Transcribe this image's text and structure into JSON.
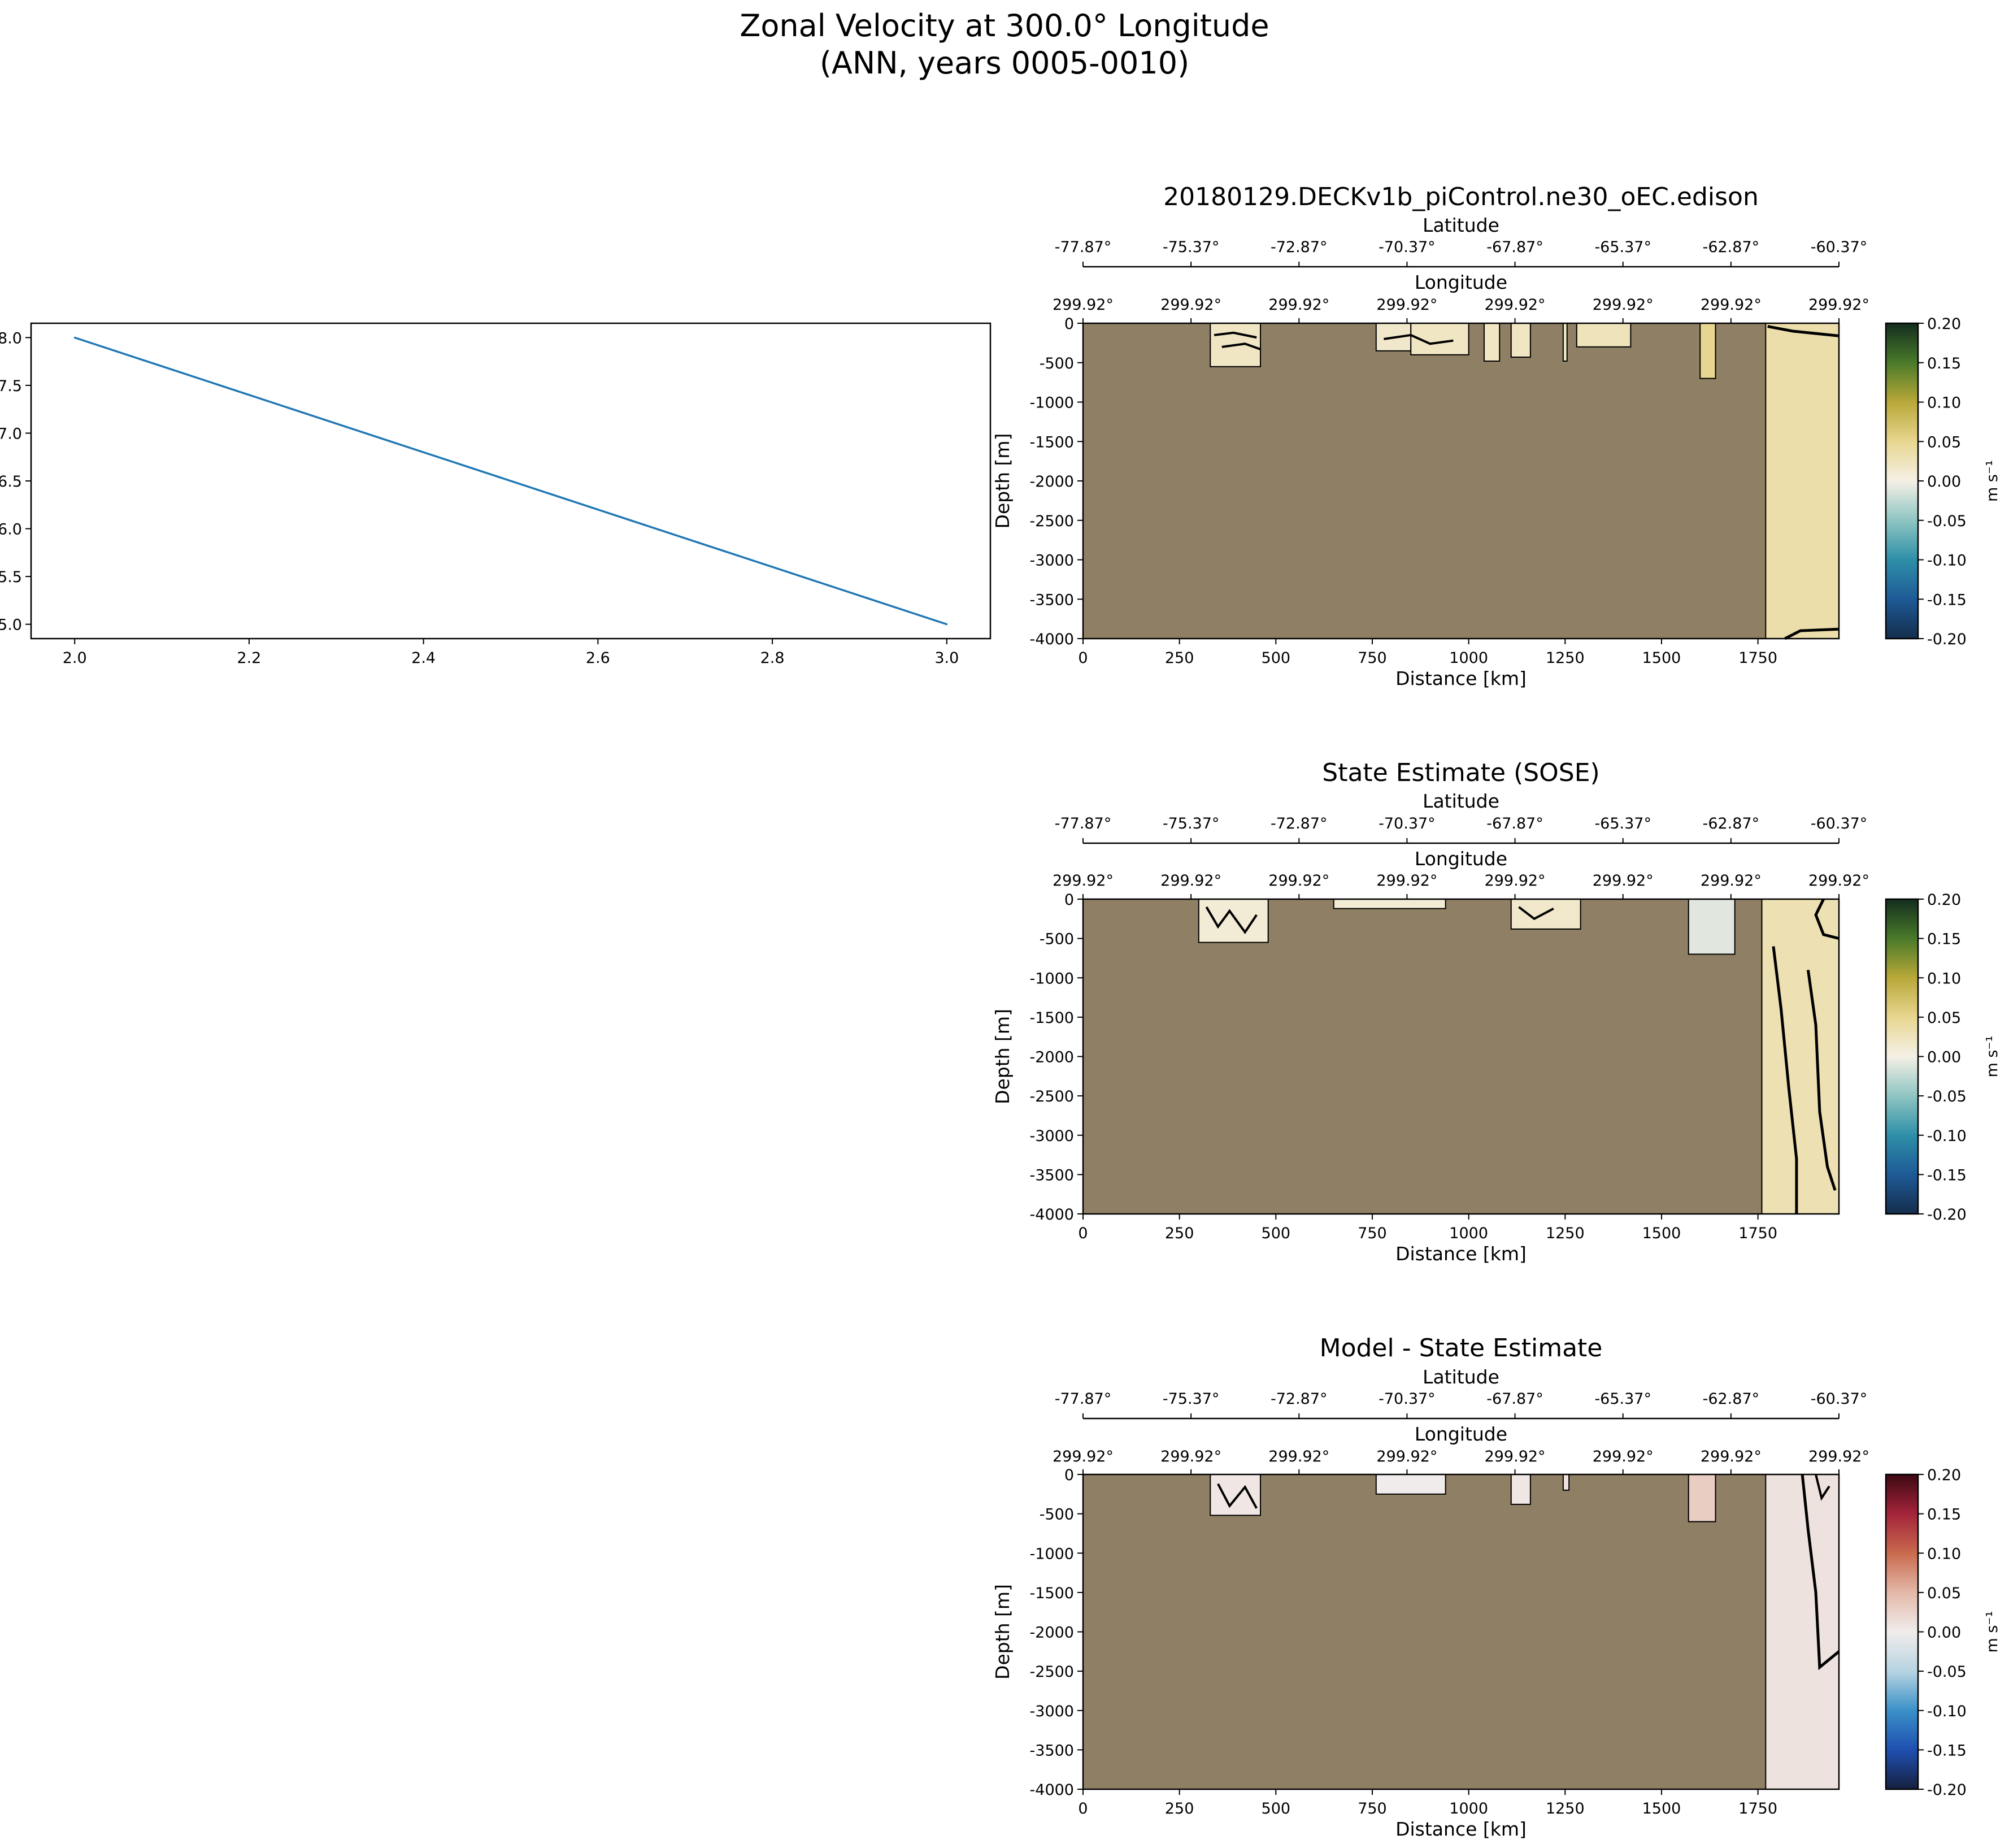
{
  "figure": {
    "suptitle_line1": "Zonal Velocity at 300.0° Longitude",
    "suptitle_line2": "(ANN, years 0005-0010)"
  },
  "colors": {
    "land": "#8f8065",
    "line": "#1f77b4",
    "contour": "#000000"
  },
  "chart_data": [
    {
      "type": "line",
      "x": [
        2.0,
        3.0
      ],
      "y": [
        8.0,
        5.0
      ],
      "xlim": [
        1.95,
        3.05
      ],
      "ylim": [
        4.85,
        8.15
      ],
      "xticks": [
        "2.0",
        "2.2",
        "2.4",
        "2.6",
        "2.8",
        "3.0"
      ],
      "yticks": [
        "5.0",
        "5.5",
        "6.0",
        "6.5",
        "7.0",
        "7.5",
        "8.0"
      ],
      "grid": false
    },
    {
      "type": "heatmap",
      "title": "20180129.DECKv1b_piControl.ne30_oEC.edison",
      "xlabel": "Distance [km]",
      "ylabel": "Depth [m]",
      "xlim": [
        0,
        1960
      ],
      "ylim": [
        -4000,
        0
      ],
      "xticks": [
        "0",
        "250",
        "500",
        "750",
        "1000",
        "1250",
        "1500",
        "1750"
      ],
      "yticks": [
        "0",
        "-500",
        "-1000",
        "-1500",
        "-2000",
        "-2500",
        "-3000",
        "-3500",
        "-4000"
      ],
      "lat_label": "Latitude",
      "lat_ticks": [
        "-77.87°",
        "-75.37°",
        "-72.87°",
        "-70.37°",
        "-67.87°",
        "-65.37°",
        "-62.87°",
        "-60.37°"
      ],
      "lon_label": "Longitude",
      "lon_ticks": [
        "299.92°",
        "299.92°",
        "299.92°",
        "299.92°",
        "299.92°",
        "299.92°",
        "299.92°",
        "299.92°"
      ],
      "colorbar": {
        "label": "m s⁻¹",
        "ticks": [
          "0.20",
          "0.15",
          "0.10",
          "0.05",
          "0.00",
          "-0.05",
          "-0.10",
          "-0.15",
          "-0.20"
        ],
        "vmin": -0.2,
        "vmax": 0.2,
        "colormap": "delta",
        "stops": [
          "#142d4c",
          "#1e5a96",
          "#2e8fa8",
          "#8fc5c2",
          "#f5f0e6",
          "#e8d690",
          "#b8a838",
          "#4a7a2a",
          "#132d1e"
        ]
      },
      "ocean_regions": [
        {
          "x0": 330,
          "x1": 460,
          "depth": 550,
          "value": 0.02
        },
        {
          "x0": 760,
          "x1": 850,
          "depth": 350,
          "value": 0.015
        },
        {
          "x0": 850,
          "x1": 1000,
          "depth": 400,
          "value": 0.02
        },
        {
          "x0": 1040,
          "x1": 1080,
          "depth": 480,
          "value": 0.02
        },
        {
          "x0": 1110,
          "x1": 1160,
          "depth": 430,
          "value": 0.02
        },
        {
          "x0": 1245,
          "x1": 1255,
          "depth": 480,
          "value": 0.02
        },
        {
          "x0": 1280,
          "x1": 1420,
          "depth": 300,
          "value": 0.025
        },
        {
          "x0": 1600,
          "x1": 1640,
          "depth": 700,
          "value": 0.05
        },
        {
          "x0": 1770,
          "x1": 1960,
          "depth": 4000,
          "value": 0.035
        }
      ]
    },
    {
      "type": "heatmap",
      "title": "State Estimate (SOSE)",
      "xlabel": "Distance [km]",
      "ylabel": "Depth [m]",
      "xlim": [
        0,
        1960
      ],
      "ylim": [
        -4000,
        0
      ],
      "xticks": [
        "0",
        "250",
        "500",
        "750",
        "1000",
        "1250",
        "1500",
        "1750"
      ],
      "yticks": [
        "0",
        "-500",
        "-1000",
        "-1500",
        "-2000",
        "-2500",
        "-3000",
        "-3500",
        "-4000"
      ],
      "lat_label": "Latitude",
      "lat_ticks": [
        "-77.87°",
        "-75.37°",
        "-72.87°",
        "-70.37°",
        "-67.87°",
        "-65.37°",
        "-62.87°",
        "-60.37°"
      ],
      "lon_label": "Longitude",
      "lon_ticks": [
        "299.92°",
        "299.92°",
        "299.92°",
        "299.92°",
        "299.92°",
        "299.92°",
        "299.92°",
        "299.92°"
      ],
      "colorbar": {
        "label": "m s⁻¹",
        "ticks": [
          "0.20",
          "0.15",
          "0.10",
          "0.05",
          "0.00",
          "-0.05",
          "-0.10",
          "-0.15",
          "-0.20"
        ],
        "vmin": -0.2,
        "vmax": 0.2,
        "colormap": "delta",
        "stops": [
          "#142d4c",
          "#1e5a96",
          "#2e8fa8",
          "#8fc5c2",
          "#f5f0e6",
          "#e8d690",
          "#b8a838",
          "#4a7a2a",
          "#132d1e"
        ]
      },
      "ocean_regions": [
        {
          "x0": 300,
          "x1": 480,
          "depth": 550,
          "value": 0.01
        },
        {
          "x0": 650,
          "x1": 940,
          "depth": 120,
          "value": 0.01
        },
        {
          "x0": 1110,
          "x1": 1290,
          "depth": 380,
          "value": 0.015
        },
        {
          "x0": 1570,
          "x1": 1690,
          "depth": 700,
          "value": -0.01
        },
        {
          "x0": 1760,
          "x1": 1960,
          "depth": 4000,
          "value": 0.03
        }
      ]
    },
    {
      "type": "heatmap",
      "title": "Model - State Estimate",
      "xlabel": "Distance [km]",
      "ylabel": "Depth [m]",
      "xlim": [
        0,
        1960
      ],
      "ylim": [
        -4000,
        0
      ],
      "xticks": [
        "0",
        "250",
        "500",
        "750",
        "1000",
        "1250",
        "1500",
        "1750"
      ],
      "yticks": [
        "0",
        "-500",
        "-1000",
        "-1500",
        "-2000",
        "-2500",
        "-3000",
        "-3500",
        "-4000"
      ],
      "lat_label": "Latitude",
      "lat_ticks": [
        "-77.87°",
        "-75.37°",
        "-72.87°",
        "-70.37°",
        "-67.87°",
        "-65.37°",
        "-62.87°",
        "-60.37°"
      ],
      "lon_label": "Longitude",
      "lon_ticks": [
        "299.92°",
        "299.92°",
        "299.92°",
        "299.92°",
        "299.92°",
        "299.92°",
        "299.92°",
        "299.92°"
      ],
      "colorbar": {
        "label": "m s⁻¹",
        "ticks": [
          "0.20",
          "0.15",
          "0.10",
          "0.05",
          "0.00",
          "-0.05",
          "-0.10",
          "-0.15",
          "-0.20"
        ],
        "vmin": -0.2,
        "vmax": 0.2,
        "colormap": "balance",
        "stops": [
          "#16203f",
          "#1f4fb0",
          "#3a90c8",
          "#b7d4e2",
          "#f1ecec",
          "#e3b8a8",
          "#c96a4e",
          "#a3243a",
          "#3c0912"
        ]
      },
      "ocean_regions": [
        {
          "x0": 330,
          "x1": 460,
          "depth": 520,
          "value": 0.005
        },
        {
          "x0": 760,
          "x1": 940,
          "depth": 250,
          "value": 0.0
        },
        {
          "x0": 1110,
          "x1": 1160,
          "depth": 380,
          "value": 0.005
        },
        {
          "x0": 1245,
          "x1": 1260,
          "depth": 200,
          "value": 0.01
        },
        {
          "x0": 1570,
          "x1": 1640,
          "depth": 600,
          "value": 0.03
        },
        {
          "x0": 1770,
          "x1": 1960,
          "depth": 4000,
          "value": 0.01
        }
      ]
    }
  ]
}
